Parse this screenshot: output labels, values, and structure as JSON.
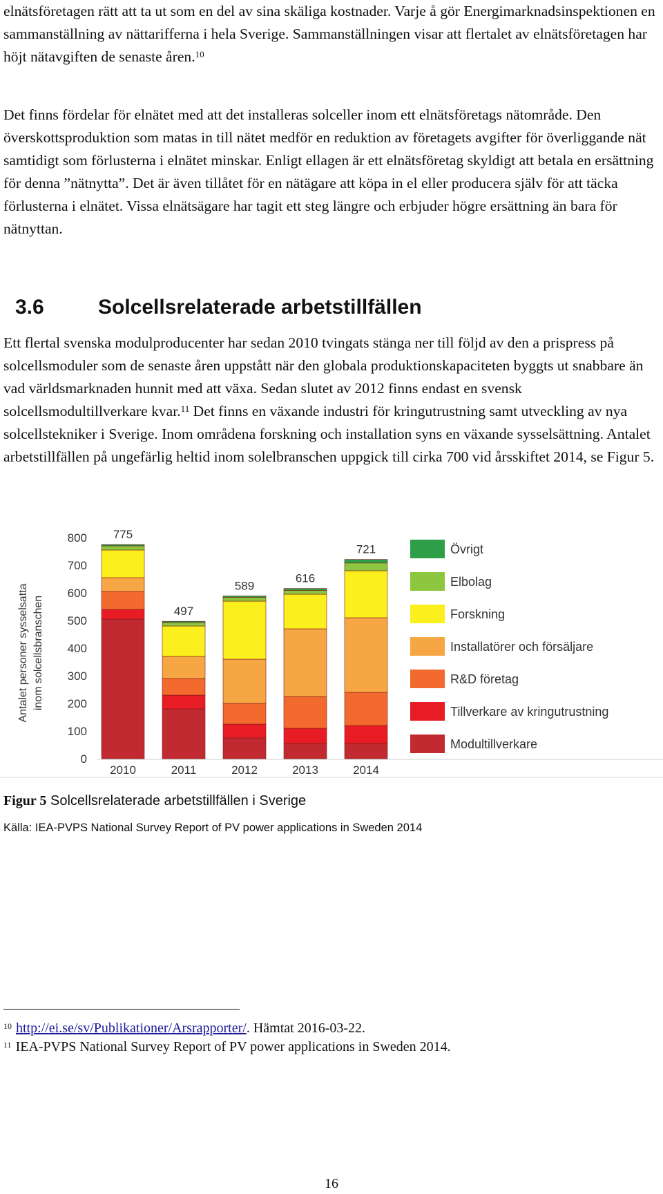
{
  "paragraphs": {
    "p1": "elnätsföretagen rätt att ta ut som en del av sina skäliga kostnader. Varje å gör Energimarknadsinspektionen en sammanställning av nättarifferna i hela Sverige. Sammanställningen visar att flertalet av elnätsföretagen har höjt nätavgiften de senaste åren.",
    "p1_ref": "10",
    "p2": "Det finns fördelar för elnätet med att det installeras solceller inom ett elnätsföretags nätområde. Den överskottsproduktion som matas in till nätet medför en reduktion av företagets avgifter för överliggande nät samtidigt som förlusterna i elnätet minskar. Enligt ellagen är ett elnätsföretag skyldigt att betala en ersättning för denna ”nätnytta”. Det är även tillåtet för en nätägare att köpa in el eller producera själv för att täcka förlusterna i elnätet. Vissa elnätsägare har tagit ett steg längre och erbjuder högre ersättning än bara för nätnyttan.",
    "p3_a": "Ett flertal svenska modulproducenter har sedan 2010 tvingats stänga ner till följd av den a prispress på solcellsmoduler som de senaste åren uppstått när den globala produktionskapaciteten byggts ut snabbare än vad världsmarknaden hunnit med att växa. Sedan slutet av 2012 finns endast en svensk solcellsmodultillverkare kvar.",
    "p3_ref": "11",
    "p3_b": " Det finns en växande industri för kringutrustning samt utveckling av nya solcellstekniker i Sverige. Inom områdena forskning och installation syns en växande sysselsättning. Antalet arbetstillfällen på ungefärlig heltid inom solelbranschen uppgick till cirka 700 vid årsskiftet 2014, se Figur 5."
  },
  "heading": {
    "number": "3.6",
    "title": "Solcellsrelaterade arbetstillfällen"
  },
  "figure": {
    "label": "Figur 5",
    "caption": "Solcellsrelaterade arbetstillfällen i Sverige",
    "source": "Källa: IEA-PVPS National Survey Report of PV power applications in Sweden 2014"
  },
  "chart_data": {
    "type": "bar",
    "stacked": true,
    "ylabel": "Antalet personer sysselsatta inom solcellsbranschen",
    "xlabel": "",
    "ylim": [
      0,
      800
    ],
    "yticks": [
      0,
      100,
      200,
      300,
      400,
      500,
      600,
      700,
      800
    ],
    "categories": [
      "2010",
      "2011",
      "2012",
      "2013",
      "2014"
    ],
    "totals": [
      775,
      497,
      589,
      616,
      721
    ],
    "legend_position": "right",
    "series": [
      {
        "name": "Modultillverkare",
        "color": "#c22a32",
        "values": [
          505,
          180,
          75,
          55,
          55
        ]
      },
      {
        "name": "Tillverkare av kringutrustning",
        "color": "#e81c24",
        "values": [
          35,
          50,
          50,
          55,
          65
        ]
      },
      {
        "name": "R&D företag",
        "color": "#f26a2e",
        "values": [
          65,
          60,
          75,
          115,
          120
        ]
      },
      {
        "name": "Installatörer och försäljare",
        "color": "#f7a644",
        "values": [
          50,
          80,
          160,
          245,
          270
        ]
      },
      {
        "name": "Forskning",
        "color": "#fcef1e",
        "values": [
          100,
          110,
          210,
          125,
          170
        ]
      },
      {
        "name": "Elbolag",
        "color": "#8dc63f",
        "values": [
          15,
          12,
          14,
          14,
          28
        ]
      },
      {
        "name": "Övrigt",
        "color": "#2e9f48",
        "values": [
          5,
          5,
          5,
          7,
          13
        ]
      }
    ]
  },
  "footnotes": [
    {
      "num": "10",
      "link": "http://ei.se/sv/Publikationer/Arsrapporter/",
      "text": ". Hämtat 2016-03-22."
    },
    {
      "num": "11",
      "text": "IEA-PVPS National Survey Report of PV power applications in Sweden 2014."
    }
  ],
  "page_number": "16"
}
